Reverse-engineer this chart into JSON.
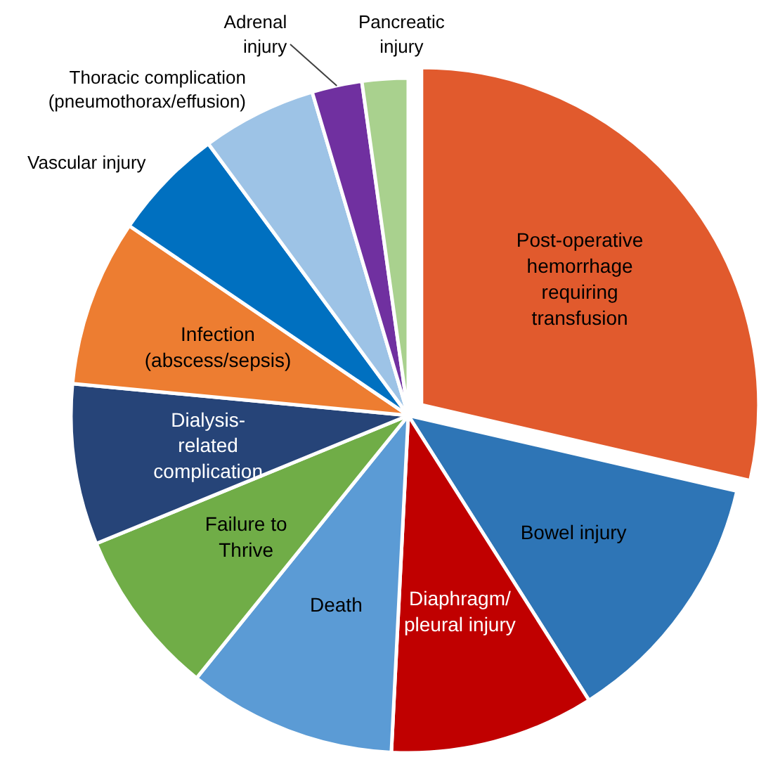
{
  "chart_data": {
    "type": "pie",
    "categories": [
      "Post-operative hemorrhage requiring transfusion",
      "Bowel injury",
      "Diaphragm/ pleural injury",
      "Death",
      "Failure to Thrive",
      "Dialysis-related complication",
      "Infection (abscess/sepsis)",
      "Vascular injury",
      "Thoracic complication (pneumothorax/effusion)",
      "Adrenal injury",
      "Pancreatic injury"
    ],
    "values": [
      28.6,
      12.4,
      9.8,
      10,
      8,
      7.7,
      8,
      5.4,
      5.5,
      2.4,
      2.2
    ],
    "colors": [
      "#e15a2d",
      "#2e75b6",
      "#c00000",
      "#5b9bd5",
      "#70ad47",
      "#264478",
      "#ed7d31",
      "#0070c0",
      "#9dc3e6",
      "#7030a0",
      "#a9d18e"
    ]
  }
}
